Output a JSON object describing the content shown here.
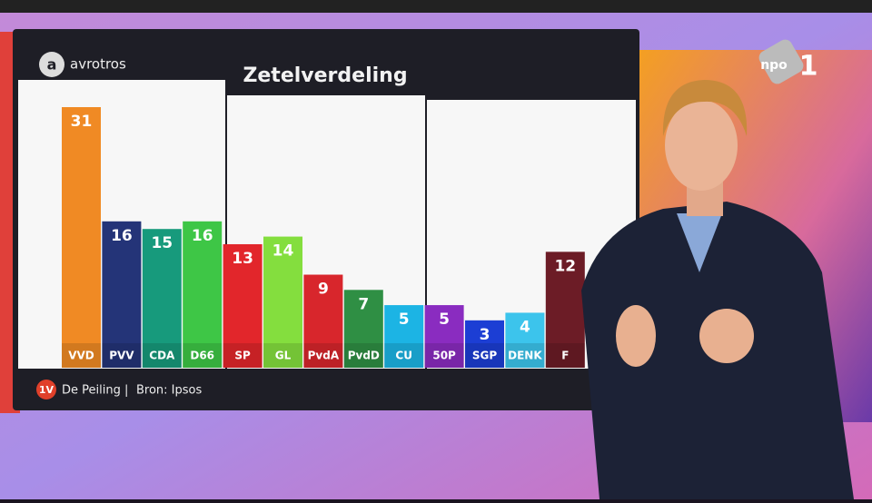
{
  "chart_data": {
    "type": "bar",
    "title": "Zetelverdeling",
    "categories": [
      "VVD",
      "PVV",
      "CDA",
      "D66",
      "SP",
      "GL",
      "PvdA",
      "PvdD",
      "CU",
      "50P",
      "SGP",
      "DENK",
      "F"
    ],
    "values": [
      31,
      16,
      15,
      16,
      13,
      14,
      9,
      7,
      5,
      5,
      3,
      4,
      12
    ],
    "colors": [
      "#f08a24",
      "#243478",
      "#179a7c",
      "#3ec646",
      "#e2262b",
      "#84de3e",
      "#d8262c",
      "#2f8f44",
      "#1cb4e4",
      "#8a2cc0",
      "#1c3ed4",
      "#3cc4ec",
      "#6c1c26"
    ]
  },
  "logo": "avrotros",
  "channel": {
    "brand": "npo",
    "number": "1"
  },
  "footer": {
    "badge": "1V",
    "program": "De Peiling",
    "separator": "|",
    "source": "Bron: Ipsos"
  }
}
